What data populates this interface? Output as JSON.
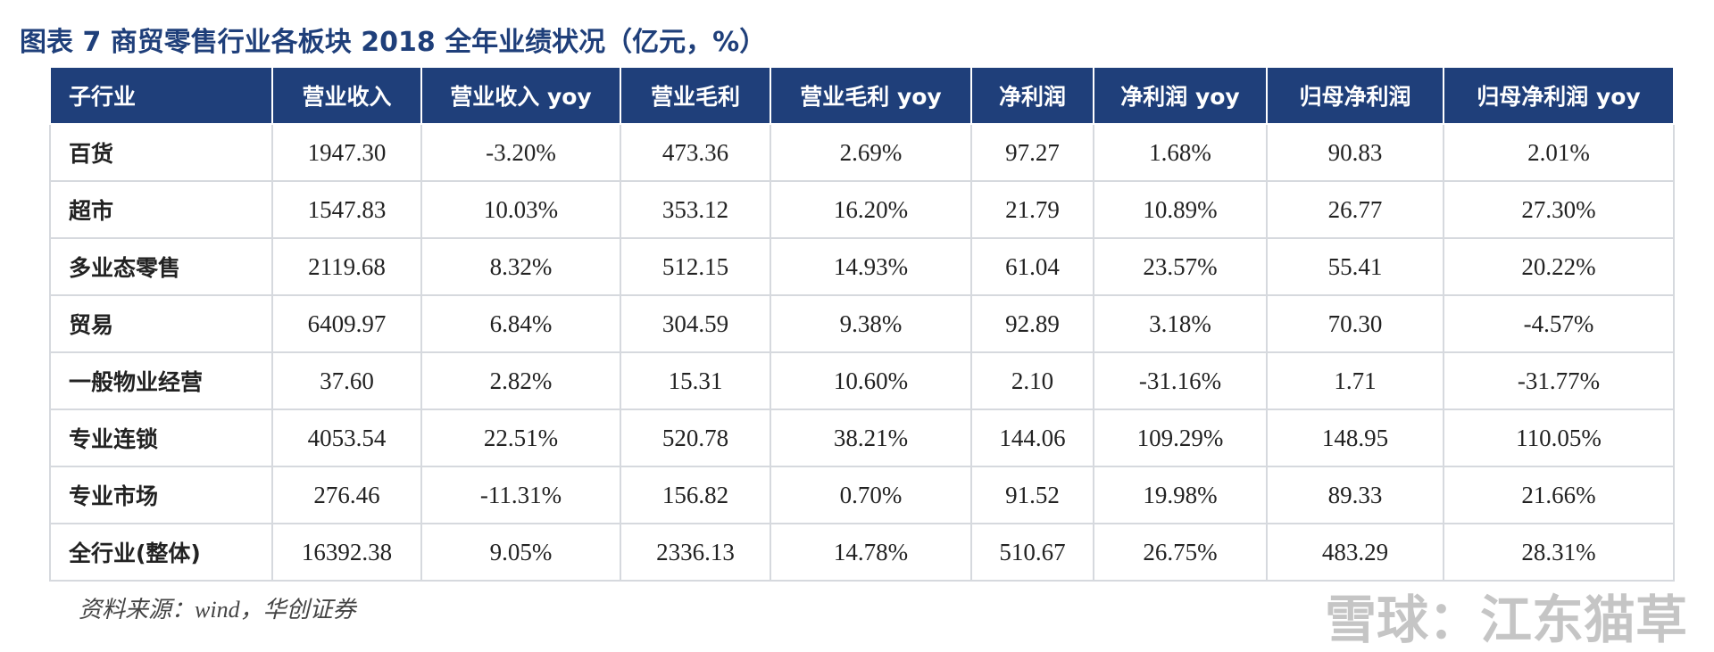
{
  "header": {
    "title": "图表 7 商贸零售行业各板块 2018 全年业绩状况（亿元，%）"
  },
  "table": {
    "columns": [
      "子行业",
      "营业收入",
      "营业收入 yoy",
      "营业毛利",
      "营业毛利 yoy",
      "净利润",
      "净利润 yoy",
      "归母净利润",
      "归母净利润 yoy"
    ],
    "rows": [
      [
        "百货",
        "1947.30",
        "-3.20%",
        "473.36",
        "2.69%",
        "97.27",
        "1.68%",
        "90.83",
        "2.01%"
      ],
      [
        "超市",
        "1547.83",
        "10.03%",
        "353.12",
        "16.20%",
        "21.79",
        "10.89%",
        "26.77",
        "27.30%"
      ],
      [
        "多业态零售",
        "2119.68",
        "8.32%",
        "512.15",
        "14.93%",
        "61.04",
        "23.57%",
        "55.41",
        "20.22%"
      ],
      [
        "贸易",
        "6409.97",
        "6.84%",
        "304.59",
        "9.38%",
        "92.89",
        "3.18%",
        "70.30",
        "-4.57%"
      ],
      [
        "一般物业经营",
        "37.60",
        "2.82%",
        "15.31",
        "10.60%",
        "2.10",
        "-31.16%",
        "1.71",
        "-31.77%"
      ],
      [
        "专业连锁",
        "4053.54",
        "22.51%",
        "520.78",
        "38.21%",
        "144.06",
        "109.29%",
        "148.95",
        "110.05%"
      ],
      [
        "专业市场",
        "276.46",
        "-11.31%",
        "156.82",
        "0.70%",
        "91.52",
        "19.98%",
        "89.33",
        "21.66%"
      ],
      [
        "全行业(整体)",
        "16392.38",
        "9.05%",
        "2336.13",
        "14.78%",
        "510.67",
        "26.75%",
        "483.29",
        "28.31%"
      ]
    ]
  },
  "footer": {
    "source": "资料来源：wind，华创证券",
    "watermark": "雪球：江东猫草"
  }
}
